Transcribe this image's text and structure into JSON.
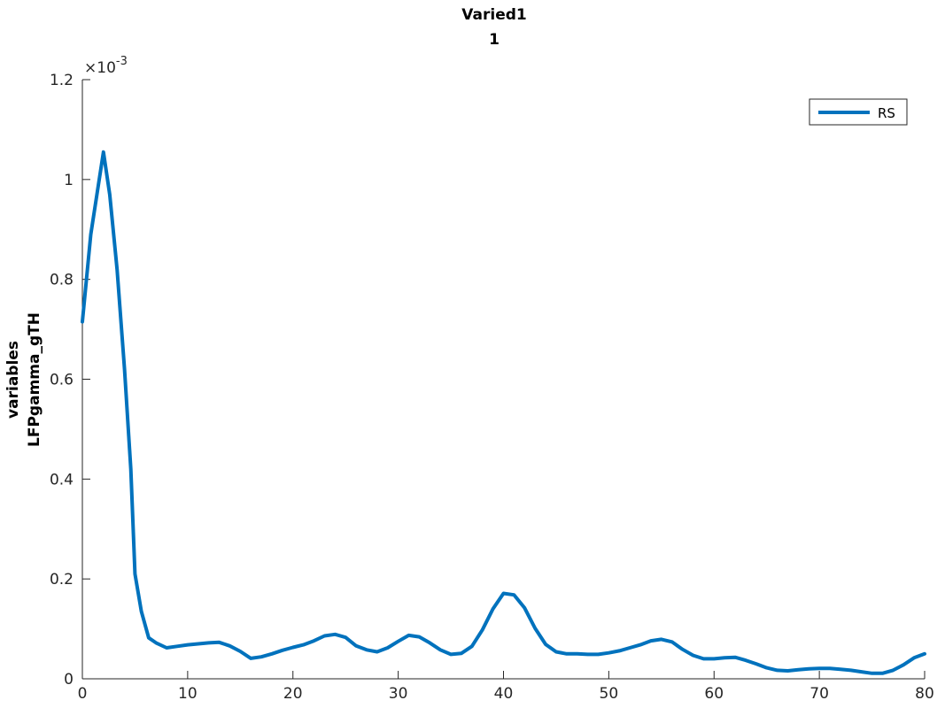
{
  "chart_data": {
    "type": "line",
    "title": [
      "Varied1",
      "1"
    ],
    "xlabel": "",
    "ylabel": [
      "variables",
      "LFPgamma_gTH"
    ],
    "xlim": [
      0,
      80
    ],
    "ylim": [
      0,
      0.0012
    ],
    "xticks": [
      0,
      10,
      20,
      30,
      40,
      50,
      60,
      70,
      80
    ],
    "xtick_labels": [
      "0",
      "10",
      "20",
      "30",
      "40",
      "50",
      "60",
      "70",
      "80"
    ],
    "yticks": [
      0,
      0.0002,
      0.0004,
      0.0006,
      0.0008,
      0.001,
      0.0012
    ],
    "ytick_labels": [
      "0",
      "0.2",
      "0.4",
      "0.6",
      "0.8",
      "1",
      "1.2"
    ],
    "y_exponent_base": "10",
    "y_exponent_power": "-3",
    "grid": false,
    "legend_position": "top-right",
    "series": [
      {
        "name": "RS",
        "color": "#0072bd",
        "x": [
          0,
          0.8,
          2,
          2.6,
          3.3,
          4,
          4.6,
          5,
          5.6,
          6.3,
          7,
          8,
          9,
          10,
          11,
          12,
          13,
          14,
          15,
          16,
          17,
          18,
          19,
          20,
          21,
          22,
          23,
          24,
          25,
          26,
          27,
          28,
          29,
          30,
          31,
          32,
          33,
          34,
          35,
          36,
          37,
          38,
          39,
          40,
          41,
          42,
          43,
          44,
          45,
          46,
          47,
          48,
          49,
          50,
          51,
          52,
          53,
          54,
          55,
          56,
          57,
          58,
          59,
          60,
          61,
          62,
          63,
          64,
          65,
          66,
          67,
          68,
          69,
          70,
          71,
          72,
          73,
          74,
          75,
          76,
          77,
          78,
          79,
          80
        ],
        "y": [
          0.000715,
          0.00089,
          0.001055,
          0.00097,
          0.00082,
          0.00062,
          0.00042,
          0.00021,
          0.000135,
          8.2e-05,
          7.2e-05,
          6.2e-05,
          6.5e-05,
          6.8e-05,
          7e-05,
          7.2e-05,
          7.3e-05,
          6.6e-05,
          5.5e-05,
          4.1e-05,
          4.4e-05,
          5e-05,
          5.7e-05,
          6.3e-05,
          6.8e-05,
          7.6e-05,
          8.6e-05,
          8.9e-05,
          8.3e-05,
          6.6e-05,
          5.8e-05,
          5.4e-05,
          6.2e-05,
          7.5e-05,
          8.7e-05,
          8.4e-05,
          7.2e-05,
          5.8e-05,
          4.9e-05,
          5.1e-05,
          6.5e-05,
          9.8e-05,
          0.00014,
          0.000171,
          0.000168,
          0.000142,
          0.000101,
          6.9e-05,
          5.4e-05,
          5e-05,
          5e-05,
          4.9e-05,
          4.9e-05,
          5.2e-05,
          5.6e-05,
          6.2e-05,
          6.8e-05,
          7.6e-05,
          7.9e-05,
          7.4e-05,
          5.9e-05,
          4.7e-05,
          4e-05,
          4e-05,
          4.2e-05,
          4.3e-05,
          3.7e-05,
          3e-05,
          2.2e-05,
          1.7e-05,
          1.6e-05,
          1.8e-05,
          2e-05,
          2.1e-05,
          2.1e-05,
          1.9e-05,
          1.7e-05,
          1.4e-05,
          1.1e-05,
          1.1e-05,
          1.7e-05,
          2.8e-05,
          4.2e-05,
          5e-05
        ]
      }
    ]
  }
}
